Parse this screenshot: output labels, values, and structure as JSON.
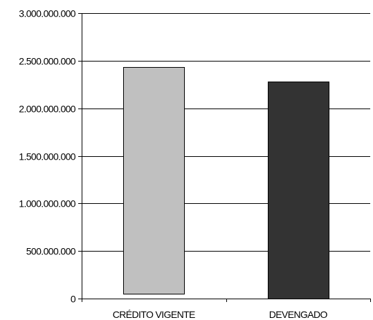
{
  "chart_data": {
    "type": "bar",
    "title": "",
    "xlabel": "",
    "ylabel": "",
    "categories": [
      "CRÉDITO VIGENTE",
      "DEVENGADO"
    ],
    "bars": [
      {
        "base": 50000000,
        "value": 2430000000,
        "color": "#c0c0c0"
      },
      {
        "base": 0,
        "value": 2280000000,
        "color": "#333333"
      }
    ],
    "ylim": [
      0,
      3000000000
    ],
    "yticks": [
      0,
      500000000,
      1000000000,
      1500000000,
      2000000000,
      2500000000,
      3000000000
    ],
    "ytick_labels": [
      "0",
      "500.000.000",
      "1.000.000.000",
      "1.500.000.000",
      "2.000.000.000",
      "2.500.000.000",
      "3.000.000.000"
    ],
    "grid": true,
    "legend": "none"
  }
}
